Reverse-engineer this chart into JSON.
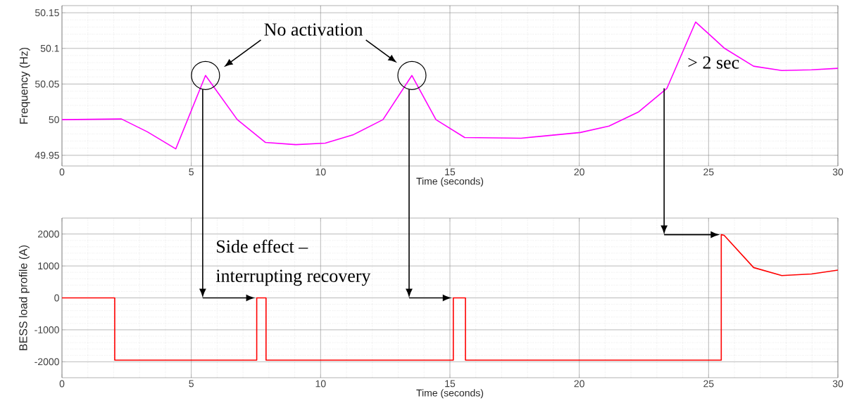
{
  "chart_data": [
    {
      "type": "line",
      "xlabel": "Time (seconds)",
      "ylabel": "Frequency (Hz)",
      "xlim": [
        0,
        30
      ],
      "ylim": [
        49.935,
        50.16
      ],
      "xticks": [
        0,
        5,
        10,
        15,
        20,
        25,
        30
      ],
      "yticks": [
        49.95,
        50,
        50.05,
        50.1,
        50.15
      ],
      "grid": true,
      "x": [
        0,
        2.3,
        3.3,
        4.4,
        5.55,
        6.78,
        7.87,
        9.04,
        10.18,
        11.27,
        12.41,
        13.53,
        14.46,
        15.57,
        17.75,
        20.04,
        21.15,
        22.3,
        23.39,
        24.5,
        25.62,
        26.74,
        27.83,
        28.98,
        30
      ],
      "series": [
        {
          "color": "#ff00ff",
          "values": [
            50.0,
            50.001,
            49.983,
            49.959,
            50.062,
            50.0,
            49.968,
            49.965,
            49.967,
            49.979,
            50.0,
            50.062,
            50.0,
            49.975,
            49.974,
            49.982,
            49.991,
            50.011,
            50.044,
            50.137,
            50.1,
            50.075,
            50.069,
            50.07,
            50.072
          ]
        }
      ],
      "annotations": [
        "No activation",
        "> 2 sec"
      ]
    },
    {
      "type": "line",
      "xlabel": "Time (seconds)",
      "ylabel": "BESS load profile (A)",
      "xlim": [
        0,
        30
      ],
      "ylim": [
        -2500,
        2500
      ],
      "xticks": [
        0,
        5,
        10,
        15,
        20,
        25,
        30
      ],
      "yticks": [
        -2000,
        -1000,
        0,
        1000,
        2000
      ],
      "grid": true,
      "x": [
        0,
        2.04,
        2.04,
        7.53,
        7.53,
        7.89,
        7.89,
        15.13,
        15.13,
        15.6,
        15.6,
        25.49,
        25.49,
        25.6,
        26.74,
        27.83,
        28.98,
        30
      ],
      "series": [
        {
          "color": "#ff0000",
          "values": [
            0,
            0,
            -1950,
            -1950,
            0,
            0,
            -1950,
            -1950,
            0,
            0,
            -1950,
            -1950,
            1980,
            1960,
            950,
            700,
            750,
            870
          ]
        }
      ],
      "annotations": [
        "Side effect –",
        "interrupting recovery"
      ]
    }
  ]
}
